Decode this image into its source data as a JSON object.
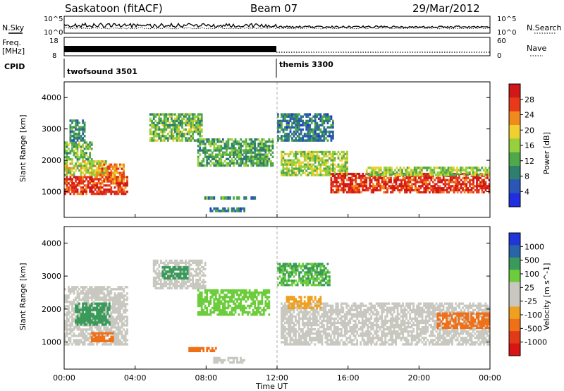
{
  "header": {
    "station": "Saskatoon (fitACF)",
    "beam": "Beam 07",
    "date": "29/Mar/2012"
  },
  "noise_panel": {
    "left_label": "N.Sky",
    "right_label": "N.Search",
    "left_ticks": [
      "10^5",
      "10^0"
    ],
    "right_ticks": [
      "10^5",
      "10^0"
    ]
  },
  "freq_panel": {
    "left_label_line1": "Freq.",
    "left_label_line2": "[MHz]",
    "right_label": "Nave",
    "left_ticks": [
      "18",
      "8"
    ],
    "right_ticks": [
      "60",
      "0"
    ]
  },
  "cpid": {
    "label": "CPID",
    "segments": [
      "twofsound 3501",
      "themis 3300"
    ]
  },
  "colors": {
    "power_scale": [
      "#1f2ee0",
      "#2a56b8",
      "#2f7f6f",
      "#4fa84a",
      "#98cf3c",
      "#f0d030",
      "#f08a1c",
      "#e83a18",
      "#d01818"
    ],
    "velocity_scale": [
      "#2136d8",
      "#2a64a8",
      "#3a9a5a",
      "#6ccc3c",
      "#c8c8c0",
      "#c8c8c0",
      "#f0a020",
      "#f07018",
      "#e03a16",
      "#d81414"
    ],
    "ground_scatter": "#c8c8c0"
  },
  "chart_data": [
    {
      "type": "heatmap",
      "title": "",
      "xlabel": "Time UT",
      "ylabel": "Slant Range [km]",
      "colorbar_label": "Power [dB]",
      "colorbar_ticks": [
        "4",
        "8",
        "12",
        "16",
        "20",
        "24",
        "28"
      ],
      "x_ticks": [
        "00:00",
        "04:00",
        "08:00",
        "12:00",
        "16:00",
        "20:00",
        "00:00"
      ],
      "y_ticks": [
        "1000",
        "2000",
        "3000",
        "4000"
      ],
      "xlim": [
        0,
        24
      ],
      "ylim": [
        180,
        4500
      ],
      "regions": [
        {
          "t0": 0.0,
          "t1": 3.6,
          "r0": 900,
          "r1": 1500,
          "value": 28
        },
        {
          "t0": 0.0,
          "t1": 2.4,
          "r0": 1500,
          "r1": 2000,
          "value": 18
        },
        {
          "t0": 0.0,
          "t1": 1.6,
          "r0": 2000,
          "r1": 2600,
          "value": 14
        },
        {
          "t0": 2.0,
          "t1": 3.4,
          "r0": 1300,
          "r1": 1900,
          "value": 24
        },
        {
          "t0": 0.3,
          "t1": 1.2,
          "r0": 2600,
          "r1": 3300,
          "value": 10
        },
        {
          "t0": 4.8,
          "t1": 7.8,
          "r0": 2600,
          "r1": 3500,
          "value": 14
        },
        {
          "t0": 7.5,
          "t1": 11.8,
          "r0": 1800,
          "r1": 2700,
          "value": 12
        },
        {
          "t0": 8.2,
          "t1": 10.2,
          "r0": 350,
          "r1": 500,
          "value": 8
        },
        {
          "t0": 7.8,
          "t1": 10.8,
          "r0": 750,
          "r1": 850,
          "value": 10
        },
        {
          "t0": 12.2,
          "t1": 16.0,
          "r0": 1500,
          "r1": 2300,
          "value": 16
        },
        {
          "t0": 12.0,
          "t1": 15.2,
          "r0": 2600,
          "r1": 3500,
          "value": 8
        },
        {
          "t0": 15.0,
          "t1": 24.0,
          "r0": 950,
          "r1": 1600,
          "value": 28
        },
        {
          "t0": 17.0,
          "t1": 24.0,
          "r0": 1500,
          "r1": 1800,
          "value": 16
        }
      ]
    },
    {
      "type": "heatmap",
      "title": "",
      "xlabel": "Time UT",
      "ylabel": "Slant Range [km]",
      "colorbar_label": "Velocity [m s^-1]",
      "colorbar_ticks": [
        "1000",
        "500",
        "100",
        "25",
        "-25",
        "-100",
        "-500",
        "-1000"
      ],
      "x_ticks": [
        "00:00",
        "04:00",
        "08:00",
        "12:00",
        "16:00",
        "20:00",
        "00:00"
      ],
      "y_ticks": [
        "1000",
        "2000",
        "3000",
        "4000"
      ],
      "xlim": [
        0,
        24
      ],
      "ylim": [
        180,
        4500
      ],
      "regions": [
        {
          "t0": 0.0,
          "t1": 3.6,
          "r0": 900,
          "r1": 2700,
          "value": 0,
          "ground": true
        },
        {
          "t0": 0.6,
          "t1": 2.6,
          "r0": 1500,
          "r1": 2200,
          "value": 120
        },
        {
          "t0": 1.5,
          "t1": 2.8,
          "r0": 1000,
          "r1": 1300,
          "value": -150
        },
        {
          "t0": 5.0,
          "t1": 8.0,
          "r0": 2600,
          "r1": 3500,
          "value": 0,
          "ground": true
        },
        {
          "t0": 5.5,
          "t1": 7.0,
          "r0": 2900,
          "r1": 3300,
          "value": 300
        },
        {
          "t0": 7.5,
          "t1": 11.6,
          "r0": 1800,
          "r1": 2600,
          "value": 80
        },
        {
          "t0": 7.0,
          "t1": 8.6,
          "r0": 700,
          "r1": 850,
          "value": -200
        },
        {
          "t0": 8.4,
          "t1": 10.2,
          "r0": 350,
          "r1": 550,
          "value": 0,
          "ground": true
        },
        {
          "t0": 12.2,
          "t1": 24.0,
          "r0": 900,
          "r1": 2200,
          "value": 0,
          "ground": true
        },
        {
          "t0": 12.0,
          "t1": 15.0,
          "r0": 2700,
          "r1": 3400,
          "value": 100
        },
        {
          "t0": 21.0,
          "t1": 24.0,
          "r0": 1400,
          "r1": 1900,
          "value": -300
        },
        {
          "t0": 12.5,
          "t1": 14.5,
          "r0": 2000,
          "r1": 2400,
          "value": -60
        }
      ]
    }
  ]
}
